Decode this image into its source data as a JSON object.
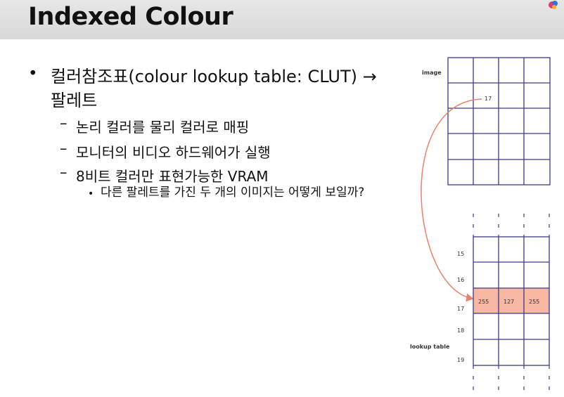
{
  "slide": {
    "title": "Indexed Colour",
    "bullets": {
      "main": "컬러참조표(colour lookup table: CLUT) → 팔레트",
      "sub1": "논리 컬러를 물리 컬러로 매핑",
      "sub2": "모니터의 비디오 하드웨어가 실행",
      "sub3": "8비트 컬러만 표현가능한 VRAM",
      "subsub": "다른 팔레트를 가진 두 개의 이미지는 어떻게 보일까?"
    }
  },
  "diagram": {
    "image_label": "image",
    "image_pixel_value": "17",
    "lookup_label": "lookup table",
    "row_indices": [
      "15",
      "16",
      "17",
      "18",
      "19"
    ],
    "highlight_values": [
      "255",
      "127",
      "255"
    ],
    "highlight_color": "#f7b7a3",
    "arrow_color": "#e8826a",
    "grid_color": "#3a3a8c"
  }
}
